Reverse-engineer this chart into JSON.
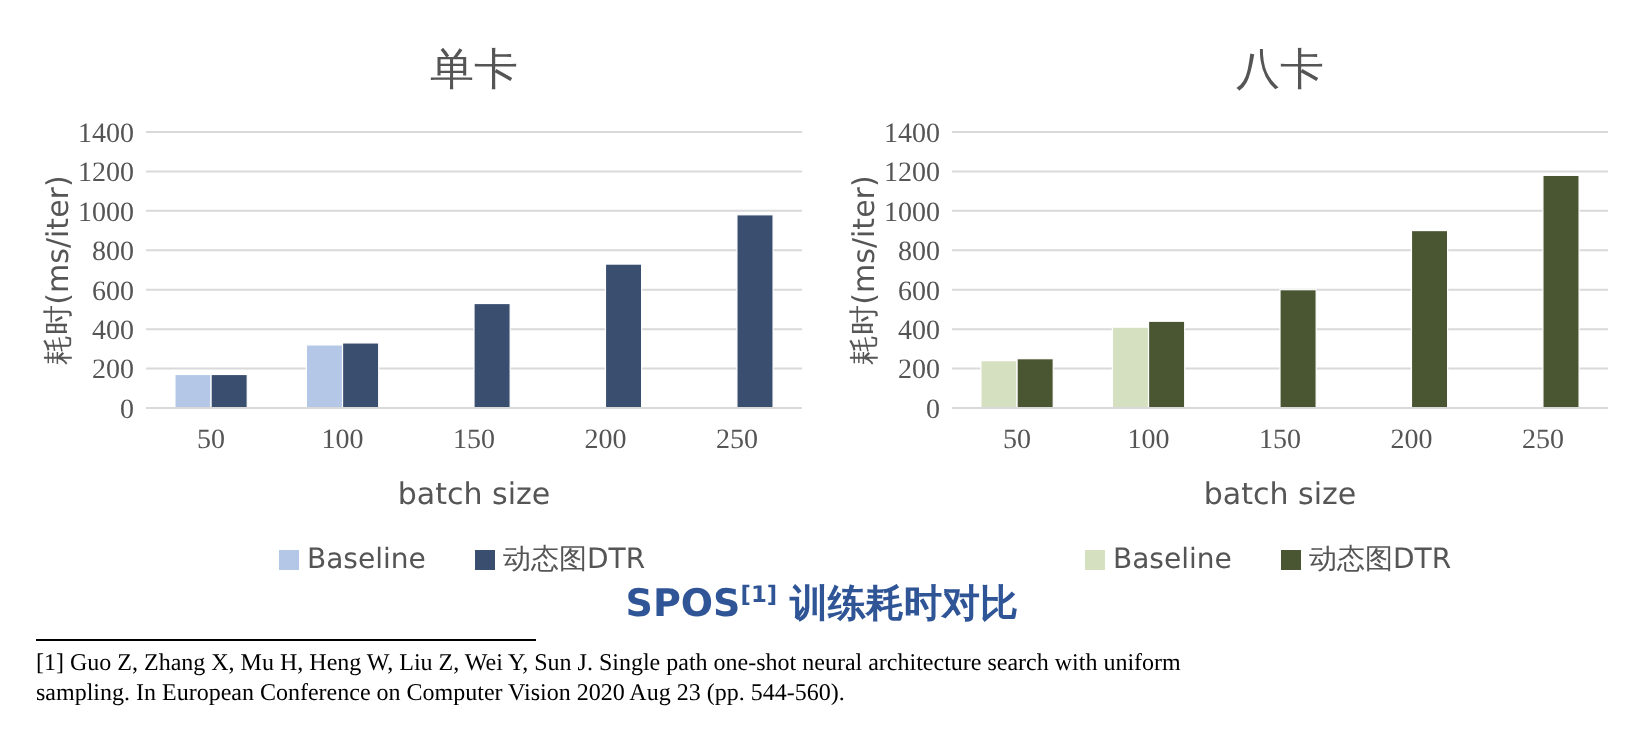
{
  "chart_data": [
    {
      "type": "bar",
      "title": "单卡",
      "xlabel": "batch size",
      "ylabel": "耗时(ms/iter)",
      "categories": [
        "50",
        "100",
        "150",
        "200",
        "250"
      ],
      "series": [
        {
          "name": "Baseline",
          "color": "#b4c7e7",
          "values": [
            170,
            320,
            null,
            null,
            null
          ]
        },
        {
          "name": "动态图DTR",
          "color": "#3a4e6f",
          "values": [
            170,
            330,
            530,
            730,
            980
          ]
        }
      ],
      "ylim": [
        0,
        1400
      ],
      "yticks": [
        0,
        200,
        400,
        600,
        800,
        1000,
        1200,
        1400
      ],
      "grid": "y",
      "legend": "bottom",
      "annotations": [
        "SPOS$^{[1]}$ 训练耗时对比",
        "[1] Guo Z, Zhang X, Mu H, Heng W, Liu Z, Wei Y, Sun J. Single path one-shot neural architecture search with uniform sampling. In European Conference on Computer Vision 2020 Aug 23 (pp. 544-560)."
      ]
    },
    {
      "type": "bar",
      "title": "八卡",
      "xlabel": "batch size",
      "ylabel": "耗时(ms/iter)",
      "categories": [
        "50",
        "100",
        "150",
        "200",
        "250"
      ],
      "series": [
        {
          "name": "Baseline",
          "color": "#d5e0c0",
          "values": [
            240,
            410,
            null,
            null,
            null
          ]
        },
        {
          "name": "动态图DTR",
          "color": "#4a5632",
          "values": [
            250,
            440,
            600,
            900,
            1180
          ]
        }
      ],
      "ylim": [
        0,
        1400
      ],
      "yticks": [
        0,
        200,
        400,
        600,
        800,
        1000,
        1200,
        1400
      ],
      "grid": "y",
      "legend": "bottom"
    }
  ]
}
